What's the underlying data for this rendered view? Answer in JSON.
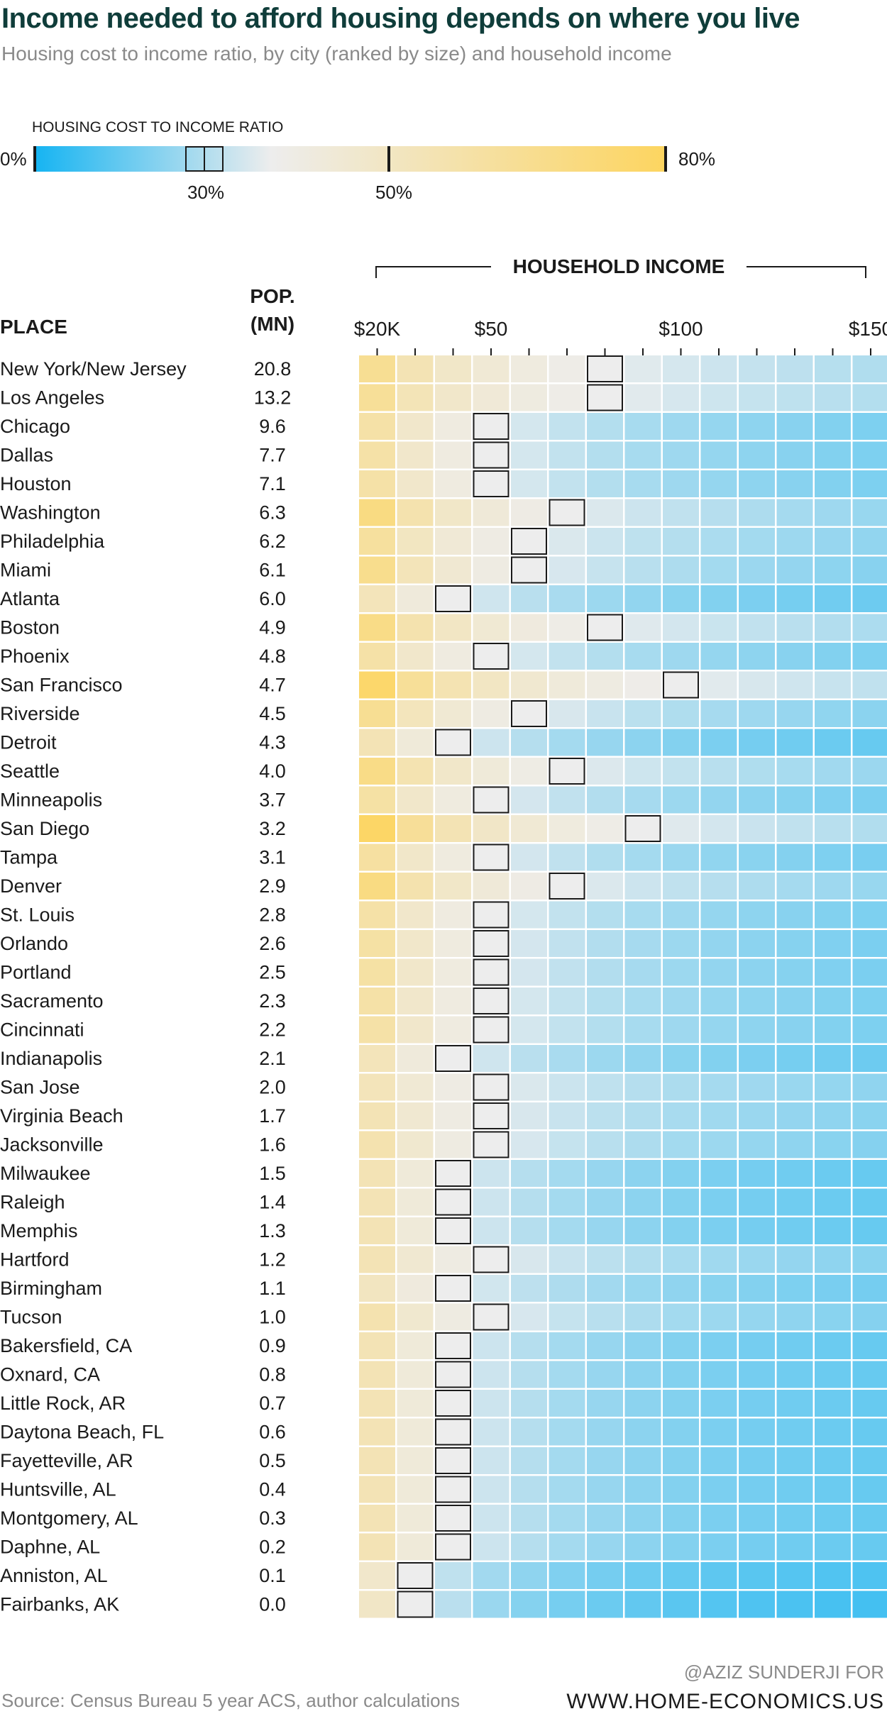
{
  "title": "Income needed to afford housing depends on where you live",
  "subtitle": "Housing cost to income ratio, by city (ranked by size) and household income",
  "legend": {
    "title": "HOUSING COST TO INCOME RATIO",
    "min_label": "0%",
    "max_label": "80%",
    "tick_30": "30%",
    "tick_50": "50%",
    "min": 0,
    "max": 80,
    "threshold_low": 30,
    "threshold_high": 50
  },
  "colors": {
    "blue": "#15b4f2",
    "light": "#ededed",
    "yellow": "#fdd560",
    "box_stroke": "#1a1a1a"
  },
  "header": {
    "place": "PLACE",
    "pop_line1": "POP.",
    "pop_line2": "(MN)",
    "household_income": "HOUSEHOLD INCOME"
  },
  "source": "Source: Census Bureau 5 year ACS, author calculations",
  "credit_line1": "@AZIZ SUNDERJI FOR",
  "credit_line2": "WWW.HOME-ECONOMICS.US",
  "chart_data": {
    "type": "heatmap",
    "income_columns_k": [
      20,
      30,
      40,
      50,
      60,
      70,
      80,
      90,
      100,
      110,
      120,
      130,
      140,
      150
    ],
    "x_tick_labels": [
      {
        "income_k": 20,
        "label": "$20K"
      },
      {
        "income_k": 50,
        "label": "$50"
      },
      {
        "income_k": 100,
        "label": "$100"
      },
      {
        "income_k": 150,
        "label": "$150"
      }
    ],
    "places": [
      {
        "name": "New York/New Jersey",
        "pop": "20.8",
        "affordable_at_k": 80,
        "ratio_first": 62,
        "ratio_floor": 10
      },
      {
        "name": "Los Angeles",
        "pop": "13.2",
        "affordable_at_k": 80,
        "ratio_first": 60,
        "ratio_floor": 10
      },
      {
        "name": "Chicago",
        "pop": "9.6",
        "affordable_at_k": 50,
        "ratio_first": 55,
        "ratio_floor": 5
      },
      {
        "name": "Dallas",
        "pop": "7.7",
        "affordable_at_k": 50,
        "ratio_first": 55,
        "ratio_floor": 5
      },
      {
        "name": "Houston",
        "pop": "7.1",
        "affordable_at_k": 50,
        "ratio_first": 55,
        "ratio_floor": 5
      },
      {
        "name": "Washington",
        "pop": "6.3",
        "affordable_at_k": 70,
        "ratio_first": 68,
        "ratio_floor": 7
      },
      {
        "name": "Philadelphia",
        "pop": "6.2",
        "affordable_at_k": 60,
        "ratio_first": 58,
        "ratio_floor": 6
      },
      {
        "name": "Miami",
        "pop": "6.1",
        "affordable_at_k": 60,
        "ratio_first": 64,
        "ratio_floor": 7
      },
      {
        "name": "Atlanta",
        "pop": "6.0",
        "affordable_at_k": 40,
        "ratio_first": 48,
        "ratio_floor": 5
      },
      {
        "name": "Boston",
        "pop": "4.9",
        "affordable_at_k": 80,
        "ratio_first": 66,
        "ratio_floor": 8
      },
      {
        "name": "Phoenix",
        "pop": "4.8",
        "affordable_at_k": 50,
        "ratio_first": 55,
        "ratio_floor": 5
      },
      {
        "name": "San Francisco",
        "pop": "4.7",
        "affordable_at_k": 100,
        "ratio_first": 76,
        "ratio_floor": 18
      },
      {
        "name": "Riverside",
        "pop": "4.5",
        "affordable_at_k": 60,
        "ratio_first": 62,
        "ratio_floor": 7
      },
      {
        "name": "Detroit",
        "pop": "4.3",
        "affordable_at_k": 40,
        "ratio_first": 50,
        "ratio_floor": 4
      },
      {
        "name": "Seattle",
        "pop": "4.0",
        "affordable_at_k": 70,
        "ratio_first": 66,
        "ratio_floor": 8
      },
      {
        "name": "Minneapolis",
        "pop": "3.7",
        "affordable_at_k": 50,
        "ratio_first": 56,
        "ratio_floor": 5
      },
      {
        "name": "San Diego",
        "pop": "3.2",
        "affordable_at_k": 90,
        "ratio_first": 78,
        "ratio_floor": 14
      },
      {
        "name": "Tampa",
        "pop": "3.1",
        "affordable_at_k": 50,
        "ratio_first": 57,
        "ratio_floor": 5
      },
      {
        "name": "Denver",
        "pop": "2.9",
        "affordable_at_k": 70,
        "ratio_first": 68,
        "ratio_floor": 8
      },
      {
        "name": "St. Louis",
        "pop": "2.8",
        "affordable_at_k": 50,
        "ratio_first": 55,
        "ratio_floor": 5
      },
      {
        "name": "Orlando",
        "pop": "2.6",
        "affordable_at_k": 50,
        "ratio_first": 56,
        "ratio_floor": 5
      },
      {
        "name": "Portland",
        "pop": "2.5",
        "affordable_at_k": 50,
        "ratio_first": 56,
        "ratio_floor": 6
      },
      {
        "name": "Sacramento",
        "pop": "2.3",
        "affordable_at_k": 50,
        "ratio_first": 55,
        "ratio_floor": 5
      },
      {
        "name": "Cincinnati",
        "pop": "2.2",
        "affordable_at_k": 50,
        "ratio_first": 55,
        "ratio_floor": 5
      },
      {
        "name": "Indianapolis",
        "pop": "2.1",
        "affordable_at_k": 40,
        "ratio_first": 48,
        "ratio_floor": 3
      },
      {
        "name": "San Jose",
        "pop": "2.0",
        "affordable_at_k": 50,
        "ratio_first": 48,
        "ratio_floor": 5
      },
      {
        "name": "Virginia Beach",
        "pop": "1.7",
        "affordable_at_k": 50,
        "ratio_first": 50,
        "ratio_floor": 5
      },
      {
        "name": "Jacksonville",
        "pop": "1.6",
        "affordable_at_k": 50,
        "ratio_first": 52,
        "ratio_floor": 5
      },
      {
        "name": "Milwaukee",
        "pop": "1.5",
        "affordable_at_k": 40,
        "ratio_first": 50,
        "ratio_floor": 5
      },
      {
        "name": "Raleigh",
        "pop": "1.4",
        "affordable_at_k": 40,
        "ratio_first": 50,
        "ratio_floor": 5
      },
      {
        "name": "Memphis",
        "pop": "1.3",
        "affordable_at_k": 40,
        "ratio_first": 50,
        "ratio_floor": 5
      },
      {
        "name": "Hartford",
        "pop": "1.2",
        "affordable_at_k": 50,
        "ratio_first": 50,
        "ratio_floor": 5
      },
      {
        "name": "Birmingham",
        "pop": "1.1",
        "affordable_at_k": 40,
        "ratio_first": 46,
        "ratio_floor": 3
      },
      {
        "name": "Tucson",
        "pop": "1.0",
        "affordable_at_k": 50,
        "ratio_first": 52,
        "ratio_floor": 5
      },
      {
        "name": "Bakersfield, CA",
        "pop": "0.9",
        "affordable_at_k": 40,
        "ratio_first": 50,
        "ratio_floor": 5
      },
      {
        "name": "Oxnard, CA",
        "pop": "0.8",
        "affordable_at_k": 40,
        "ratio_first": 50,
        "ratio_floor": 5
      },
      {
        "name": "Little Rock, AR",
        "pop": "0.7",
        "affordable_at_k": 40,
        "ratio_first": 50,
        "ratio_floor": 5
      },
      {
        "name": "Daytona Beach, FL",
        "pop": "0.6",
        "affordable_at_k": 40,
        "ratio_first": 50,
        "ratio_floor": 5
      },
      {
        "name": "Fayetteville, AR",
        "pop": "0.5",
        "affordable_at_k": 40,
        "ratio_first": 50,
        "ratio_floor": 5
      },
      {
        "name": "Huntsville, AL",
        "pop": "0.4",
        "affordable_at_k": 40,
        "ratio_first": 50,
        "ratio_floor": 5
      },
      {
        "name": "Montgomery, AL",
        "pop": "0.3",
        "affordable_at_k": 40,
        "ratio_first": 50,
        "ratio_floor": 5
      },
      {
        "name": "Daphne, AL",
        "pop": "0.2",
        "affordable_at_k": 40,
        "ratio_first": 50,
        "ratio_floor": 5
      },
      {
        "name": "Anniston, AL",
        "pop": "0.1",
        "affordable_at_k": 30,
        "ratio_first": 42,
        "ratio_floor": 3
      },
      {
        "name": "Fairbanks, AK",
        "pop": "0.0",
        "affordable_at_k": 30,
        "ratio_first": 44,
        "ratio_floor": 4
      }
    ]
  }
}
